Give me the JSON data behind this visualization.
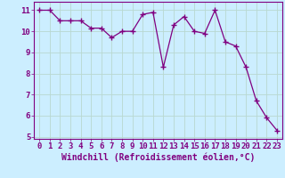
{
  "x": [
    0,
    1,
    2,
    3,
    4,
    5,
    6,
    7,
    8,
    9,
    10,
    11,
    12,
    13,
    14,
    15,
    16,
    17,
    18,
    19,
    20,
    21,
    22,
    23
  ],
  "y": [
    11.0,
    11.0,
    10.5,
    10.5,
    10.5,
    10.15,
    10.15,
    9.7,
    10.0,
    10.0,
    10.8,
    10.9,
    8.3,
    10.3,
    10.7,
    10.0,
    9.9,
    11.0,
    9.5,
    9.3,
    8.3,
    6.7,
    5.9,
    5.3
  ],
  "line_color": "#800080",
  "marker": "D",
  "marker_size": 2.5,
  "bg_color": "#cceeff",
  "grid_color": "#aaddcc",
  "xlabel": "Windchill (Refroidissement éolien,°C)",
  "xlabel_color": "#800080",
  "xlim": [
    -0.5,
    23.5
  ],
  "ylim": [
    4.9,
    11.4
  ],
  "yticks": [
    5,
    6,
    7,
    8,
    9,
    10,
    11
  ],
  "xticks": [
    0,
    1,
    2,
    3,
    4,
    5,
    6,
    7,
    8,
    9,
    10,
    11,
    12,
    13,
    14,
    15,
    16,
    17,
    18,
    19,
    20,
    21,
    22,
    23
  ],
  "tick_color": "#800080",
  "axis_color": "#800080",
  "font_size": 6.5,
  "xlabel_fontsize": 7,
  "spine_color": "#800080",
  "grid_major_color": "#b0cccc",
  "grid_minor_color": "#cce8e0"
}
